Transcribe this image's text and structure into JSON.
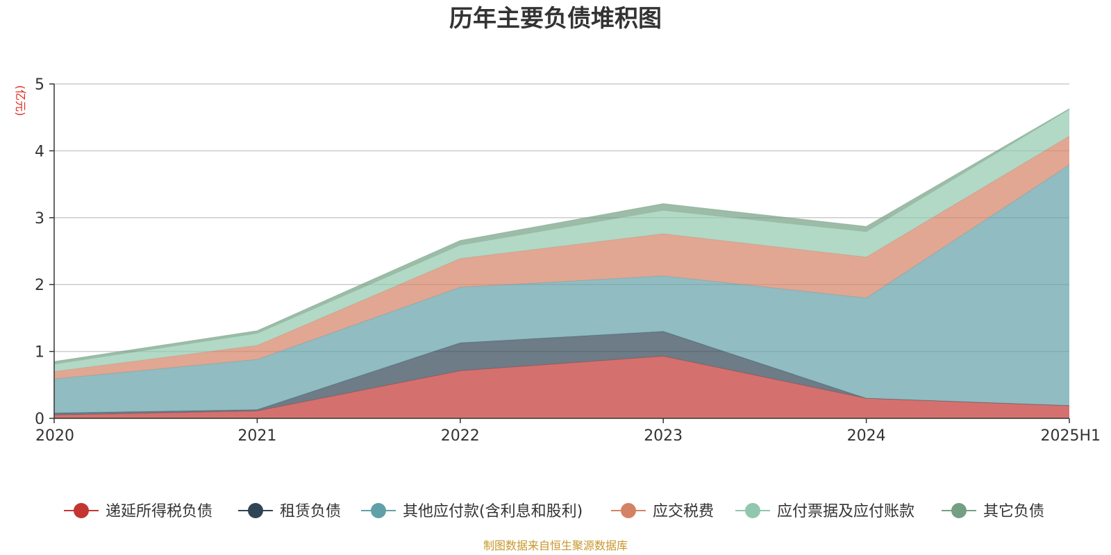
{
  "chart_data": {
    "type": "area",
    "stacked": true,
    "title": "历年主要负债堆积图",
    "unit_label": "(亿元)",
    "x": [
      "2020",
      "2021",
      "2022",
      "2023",
      "2024",
      "2025H1"
    ],
    "ylim": [
      0,
      5
    ],
    "yticks": [
      0,
      1,
      2,
      3,
      4,
      5
    ],
    "grid": true,
    "legend_position": "bottom",
    "series": [
      {
        "name": "递延所得税负债",
        "color": "#c23531",
        "values": [
          0.05,
          0.11,
          0.71,
          0.93,
          0.3,
          0.19
        ]
      },
      {
        "name": "租赁负债",
        "color": "#2f4554",
        "values": [
          0.03,
          0.02,
          0.42,
          0.37,
          0.0,
          0.0
        ]
      },
      {
        "name": "其他应付款(含利息和股利)",
        "color": "#61a0a8",
        "values": [
          0.51,
          0.75,
          0.83,
          0.83,
          1.5,
          3.6
        ]
      },
      {
        "name": "应交税费",
        "color": "#d48265",
        "values": [
          0.11,
          0.21,
          0.43,
          0.63,
          0.61,
          0.43
        ]
      },
      {
        "name": "应付票据及应付账款",
        "color": "#91c7ae",
        "values": [
          0.11,
          0.18,
          0.2,
          0.35,
          0.38,
          0.4
        ]
      },
      {
        "name": "其它负债",
        "color": "#749f83",
        "values": [
          0.04,
          0.04,
          0.07,
          0.1,
          0.08,
          0.01
        ]
      }
    ]
  },
  "source_note": "制图数据来自恒生聚源数据库"
}
